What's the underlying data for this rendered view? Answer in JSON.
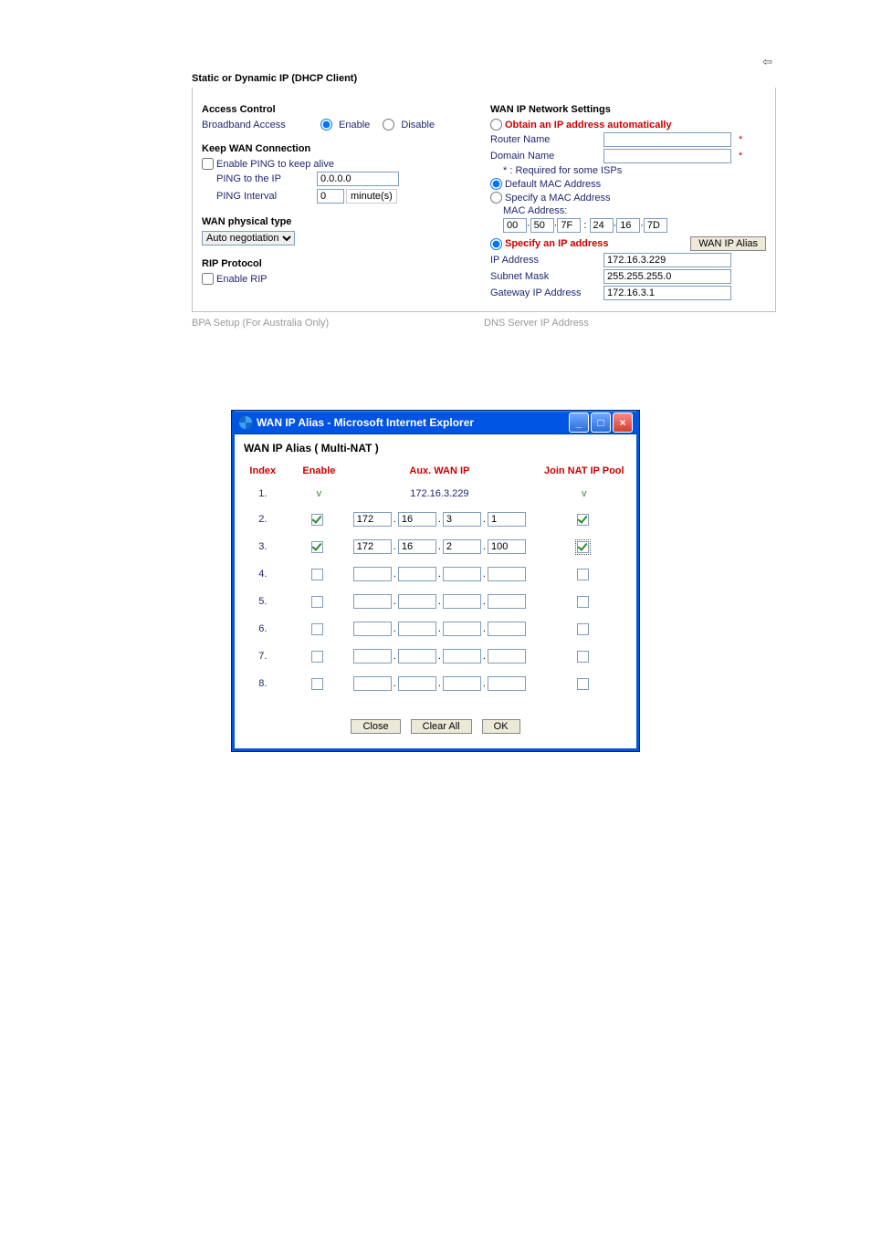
{
  "page_title": "Static or Dynamic IP (DHCP Client)",
  "back_arrow_glyph": "⇦",
  "access_control": {
    "heading": "Access Control",
    "broadband_label": "Broadband Access",
    "enable_label": "Enable",
    "disable_label": "Disable",
    "enabled": true
  },
  "keep_wan": {
    "heading": "Keep WAN Connection",
    "enable_ping_label": "Enable PING to keep alive",
    "enable_ping_checked": false,
    "ping_ip_label": "PING to the IP",
    "ping_ip_value": "0.0.0.0",
    "ping_interval_label": "PING Interval",
    "ping_interval_value": "0",
    "minutes_label": "minute(s)"
  },
  "wan_physical": {
    "heading": "WAN physical type",
    "select_value": "Auto negotiation"
  },
  "rip": {
    "heading": "RIP Protocol",
    "enable_label": "Enable RIP",
    "checked": false
  },
  "bpa_grey": "BPA Setup (For Australia Only)",
  "wan_ip": {
    "heading": "WAN IP Network Settings",
    "obtain_label": "Obtain an IP address automatically",
    "obtain_selected": false,
    "router_name_label": "Router Name",
    "router_name_value": "",
    "domain_name_label": "Domain Name",
    "domain_name_value": "",
    "required_note": "* : Required for some ISPs",
    "default_mac_label": "Default MAC Address",
    "default_mac_selected": true,
    "specify_mac_label": "Specify a MAC Address",
    "mac_label": "MAC Address:",
    "mac": [
      "00",
      "50",
      "7F",
      "24",
      "16",
      "7D"
    ],
    "specify_ip_label": "Specify an IP address",
    "specify_ip_selected": true,
    "wan_ip_alias_btn": "WAN IP Alias",
    "ip_address_label": "IP Address",
    "ip_address_value": "172.16.3.229",
    "subnet_label": "Subnet Mask",
    "subnet_value": "255.255.255.0",
    "gateway_label": "Gateway IP Address",
    "gateway_value": "172.16.3.1"
  },
  "dns_grey": "DNS Server IP Address",
  "popup": {
    "title": "WAN IP Alias - Microsoft Internet Explorer",
    "header": "WAN IP Alias ( Multi-NAT )",
    "col_index": "Index",
    "col_enable": "Enable",
    "col_aux": "Aux. WAN IP",
    "col_join": "Join NAT IP Pool",
    "rows": [
      {
        "index": "1.",
        "enable": "v",
        "ip_display": "172.16.3.229",
        "join": "v",
        "is_static": true
      },
      {
        "index": "2.",
        "enable_checked": true,
        "ip": [
          "172",
          "16",
          "3",
          "1"
        ],
        "join_checked": true,
        "focus": false
      },
      {
        "index": "3.",
        "enable_checked": true,
        "ip": [
          "172",
          "16",
          "2",
          "100"
        ],
        "join_checked": true,
        "focus": true
      },
      {
        "index": "4.",
        "enable_checked": false,
        "ip": [
          "",
          "",
          "",
          ""
        ],
        "join_checked": false
      },
      {
        "index": "5.",
        "enable_checked": false,
        "ip": [
          "",
          "",
          "",
          ""
        ],
        "join_checked": false
      },
      {
        "index": "6.",
        "enable_checked": false,
        "ip": [
          "",
          "",
          "",
          ""
        ],
        "join_checked": false
      },
      {
        "index": "7.",
        "enable_checked": false,
        "ip": [
          "",
          "",
          "",
          ""
        ],
        "join_checked": false
      },
      {
        "index": "8.",
        "enable_checked": false,
        "ip": [
          "",
          "",
          "",
          ""
        ],
        "join_checked": false
      }
    ],
    "btn_close": "Close",
    "btn_clear": "Clear All",
    "btn_ok": "OK"
  }
}
